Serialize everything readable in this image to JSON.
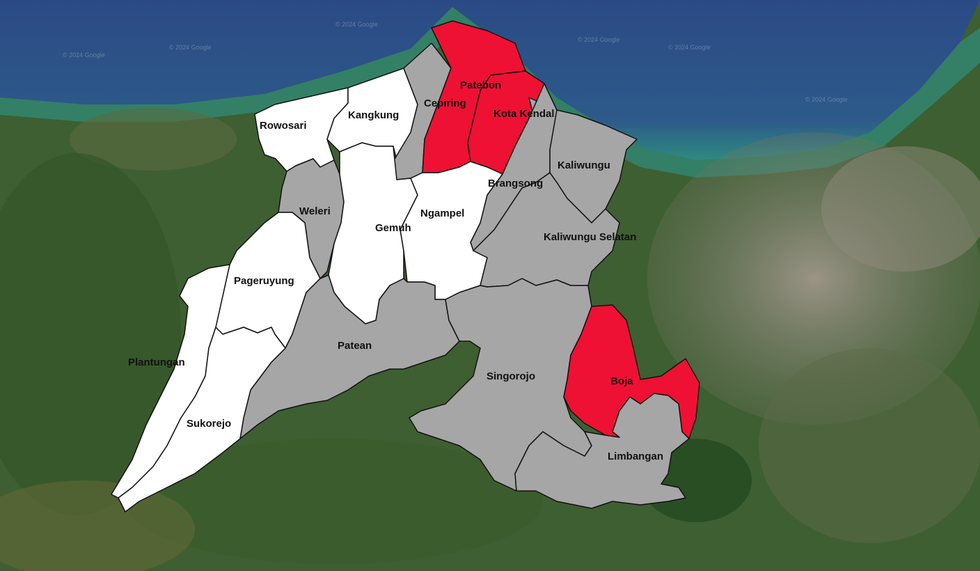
{
  "colors": {
    "highlight": "#ee1133",
    "neutral": "#a6a6a6",
    "other": "#ffffff",
    "sea_deep": "#2d4f86",
    "sea_shallow": "#2f8f86",
    "land": "#3e5f31",
    "urban": "#8a8578"
  },
  "watermark": "© 2024 Google",
  "districts": [
    {
      "key": "rowosari",
      "name": "Rowosari",
      "fill": "white"
    },
    {
      "key": "kangkung",
      "name": "Kangkung",
      "fill": "white"
    },
    {
      "key": "cepiring",
      "name": "Cepiring",
      "fill": "grey"
    },
    {
      "key": "patebon",
      "name": "Patebon",
      "fill": "red"
    },
    {
      "key": "kota_kendal",
      "name": "Kota Kendal",
      "fill": "red"
    },
    {
      "key": "kaliwungu",
      "name": "Kaliwungu",
      "fill": "grey"
    },
    {
      "key": "brangsong",
      "name": "Brangsong",
      "fill": "grey"
    },
    {
      "key": "weleri",
      "name": "Weleri",
      "fill": "grey"
    },
    {
      "key": "gemuh",
      "name": "Gemuh",
      "fill": "white"
    },
    {
      "key": "ngampel",
      "name": "Ngampel",
      "fill": "white"
    },
    {
      "key": "kaliwungu_selatan",
      "name": "Kaliwungu Selatan",
      "fill": "grey"
    },
    {
      "key": "pageruyung",
      "name": "Pageruyung",
      "fill": "white"
    },
    {
      "key": "patean",
      "name": "Patean",
      "fill": "grey"
    },
    {
      "key": "plantungan",
      "name": "Plantungan",
      "fill": "white"
    },
    {
      "key": "sukorejo",
      "name": "Sukorejo",
      "fill": "white"
    },
    {
      "key": "singorojo",
      "name": "Singorojo",
      "fill": "grey"
    },
    {
      "key": "boja",
      "name": "Boja",
      "fill": "red"
    },
    {
      "key": "limbangan",
      "name": "Limbangan",
      "fill": "grey"
    }
  ]
}
